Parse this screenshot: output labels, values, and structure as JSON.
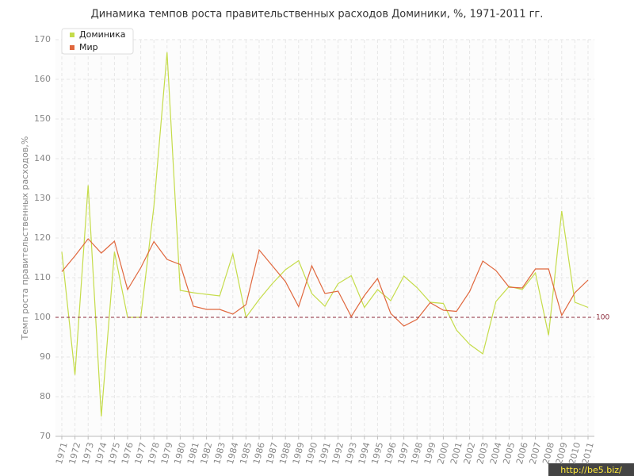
{
  "chart_data": {
    "type": "line",
    "title": "Динамика темпов роста правительственных расходов Доминики, %, 1971-2011 гг.",
    "y_label": "Темп роста правительственных расходов,%",
    "categories": [
      "1971",
      "1972",
      "1973",
      "1974",
      "1975",
      "1976",
      "1977",
      "1978",
      "1979",
      "1980",
      "1981",
      "1982",
      "1983",
      "1984",
      "1985",
      "1986",
      "1987",
      "1988",
      "1989",
      "1990",
      "1991",
      "1992",
      "1993",
      "1994",
      "1995",
      "1996",
      "1997",
      "1998",
      "1999",
      "2000",
      "2001",
      "2002",
      "2003",
      "2004",
      "2005",
      "2006",
      "2007",
      "2008",
      "2009",
      "2010",
      "2011"
    ],
    "series": [
      {
        "name": "Доминика",
        "color": "#c5dc4a",
        "values": [
          116.5,
          85.5,
          133.3,
          75,
          116.5,
          100,
          100,
          128,
          166.8,
          106.8,
          106.2,
          105.8,
          105.4,
          116,
          100,
          104.5,
          108.5,
          112,
          114.3,
          106,
          102.8,
          108.5,
          110.5,
          102.5,
          107,
          104.2,
          110.4,
          107.5,
          103.8,
          103.5,
          96.8,
          93.2,
          90.8,
          104,
          107.8,
          107,
          111.2,
          95.5,
          126.8,
          103.8,
          102.5
        ]
      },
      {
        "name": "Мир",
        "color": "#e0673d",
        "values": [
          111.5,
          115.5,
          119.8,
          116.2,
          119.2,
          107,
          112.5,
          119.1,
          114.6,
          113.3,
          102.8,
          102,
          102,
          100.8,
          103.2,
          117,
          113,
          109,
          102.7,
          113,
          106,
          106.6,
          100.2,
          105.5,
          109.8,
          101,
          97.8,
          99.5,
          103.7,
          101.8,
          101.5,
          106.5,
          114.2,
          111.8,
          107.6,
          107.4,
          112.2,
          112.2,
          100.5,
          106.2,
          109.4
        ]
      }
    ],
    "ylim": [
      70,
      170
    ],
    "yticks": [
      70,
      80,
      90,
      100,
      110,
      120,
      130,
      140,
      150,
      160,
      170
    ],
    "reference_line": 100,
    "grid": true,
    "legend": "top-left",
    "watermark": "http://be5.biz/"
  }
}
